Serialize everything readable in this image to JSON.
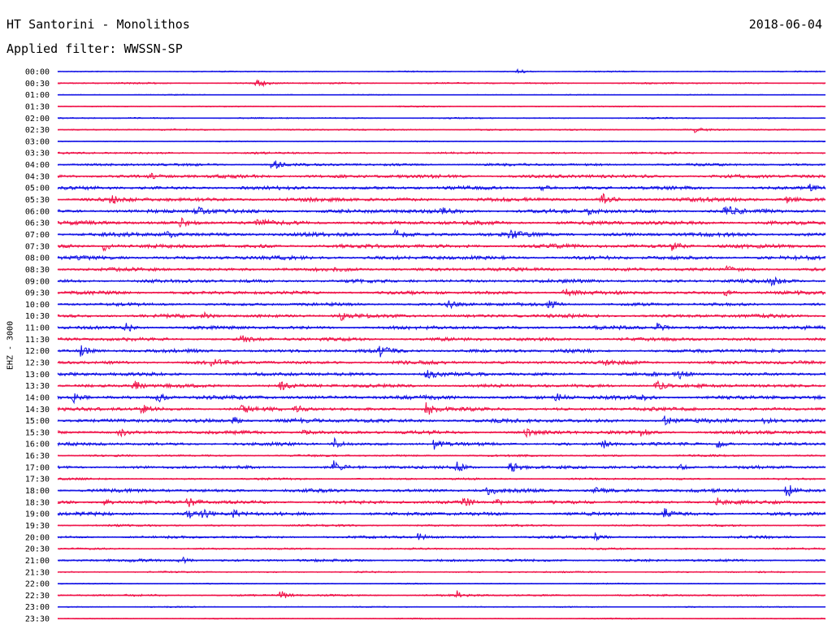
{
  "header": {
    "station": "HT Santorini - Monolithos",
    "date": "2018-06-04",
    "filter": "Applied filter: WWSSN-SP"
  },
  "chart_data": {
    "type": "line",
    "title": "HT Santorini - Monolithos",
    "ylabel": "EHZ - 3000",
    "xlim_minutes": [
      0,
      30
    ],
    "colors": [
      "#1414e6",
      "#f0144a"
    ],
    "rows": [
      {
        "label": "00:00",
        "noise": 0.6,
        "events": [
          [
            0.6,
            3
          ]
        ]
      },
      {
        "label": "00:30",
        "noise": 0.8,
        "events": [
          [
            0.26,
            7
          ]
        ]
      },
      {
        "label": "01:00",
        "noise": 0.5,
        "events": []
      },
      {
        "label": "01:30",
        "noise": 0.6,
        "events": []
      },
      {
        "label": "02:00",
        "noise": 0.7,
        "events": []
      },
      {
        "label": "02:30",
        "noise": 0.8,
        "events": [
          [
            0.83,
            3
          ]
        ]
      },
      {
        "label": "03:00",
        "noise": 0.6,
        "events": []
      },
      {
        "label": "03:30",
        "noise": 1.0,
        "events": []
      },
      {
        "label": "04:00",
        "noise": 1.3,
        "events": [
          [
            0.28,
            7
          ]
        ]
      },
      {
        "label": "04:30",
        "noise": 1.8,
        "events": [
          [
            0.12,
            5
          ]
        ]
      },
      {
        "label": "05:00",
        "noise": 1.8,
        "events": [
          [
            0.63,
            4
          ],
          [
            0.98,
            4
          ]
        ]
      },
      {
        "label": "05:30",
        "noise": 2.0,
        "events": [
          [
            0.07,
            6
          ],
          [
            0.71,
            6
          ],
          [
            0.95,
            4
          ]
        ]
      },
      {
        "label": "06:00",
        "noise": 2.0,
        "events": [
          [
            0.18,
            6
          ],
          [
            0.5,
            4
          ],
          [
            0.69,
            4
          ],
          [
            0.87,
            8
          ]
        ]
      },
      {
        "label": "06:30",
        "noise": 2.0,
        "events": [
          [
            0.16,
            6
          ],
          [
            0.26,
            5
          ]
        ]
      },
      {
        "label": "07:00",
        "noise": 2.0,
        "events": [
          [
            0.14,
            6
          ],
          [
            0.44,
            6
          ],
          [
            0.59,
            6
          ]
        ]
      },
      {
        "label": "07:30",
        "noise": 2.0,
        "events": [
          [
            0.06,
            6
          ],
          [
            0.8,
            7
          ]
        ]
      },
      {
        "label": "08:00",
        "noise": 2.0,
        "events": []
      },
      {
        "label": "08:30",
        "noise": 1.8,
        "events": [
          [
            0.87,
            3
          ]
        ]
      },
      {
        "label": "09:00",
        "noise": 1.8,
        "events": [
          [
            0.93,
            5
          ]
        ]
      },
      {
        "label": "09:30",
        "noise": 1.8,
        "events": [
          [
            0.66,
            7
          ],
          [
            0.87,
            4
          ]
        ]
      },
      {
        "label": "10:00",
        "noise": 1.6,
        "events": [
          [
            0.51,
            5
          ],
          [
            0.64,
            5
          ]
        ]
      },
      {
        "label": "10:30",
        "noise": 1.8,
        "events": [
          [
            0.19,
            4
          ],
          [
            0.37,
            7
          ]
        ]
      },
      {
        "label": "11:00",
        "noise": 1.8,
        "events": [
          [
            0.09,
            5
          ],
          [
            0.78,
            6
          ]
        ]
      },
      {
        "label": "11:30",
        "noise": 1.8,
        "events": [
          [
            0.24,
            4
          ]
        ]
      },
      {
        "label": "12:00",
        "noise": 1.8,
        "events": [
          [
            0.03,
            6
          ],
          [
            0.42,
            6
          ]
        ]
      },
      {
        "label": "12:30",
        "noise": 1.8,
        "events": [
          [
            0.2,
            7
          ],
          [
            0.71,
            4
          ]
        ]
      },
      {
        "label": "13:00",
        "noise": 1.8,
        "events": [
          [
            0.48,
            8
          ],
          [
            0.81,
            5
          ]
        ]
      },
      {
        "label": "13:30",
        "noise": 1.8,
        "events": [
          [
            0.1,
            6
          ],
          [
            0.29,
            5
          ],
          [
            0.78,
            7
          ]
        ]
      },
      {
        "label": "14:00",
        "noise": 2.0,
        "events": [
          [
            0.02,
            6
          ],
          [
            0.13,
            6
          ],
          [
            0.65,
            4
          ],
          [
            0.76,
            4
          ]
        ]
      },
      {
        "label": "14:30",
        "noise": 1.8,
        "events": [
          [
            0.11,
            6
          ],
          [
            0.24,
            6
          ],
          [
            0.31,
            5
          ],
          [
            0.48,
            10
          ]
        ]
      },
      {
        "label": "15:00",
        "noise": 2.0,
        "events": [
          [
            0.23,
            5
          ],
          [
            0.31,
            4
          ],
          [
            0.79,
            6
          ],
          [
            0.92,
            3
          ]
        ]
      },
      {
        "label": "15:30",
        "noise": 1.8,
        "events": [
          [
            0.08,
            6
          ],
          [
            0.32,
            5
          ],
          [
            0.61,
            4
          ],
          [
            0.76,
            4
          ]
        ]
      },
      {
        "label": "16:00",
        "noise": 1.6,
        "events": [
          [
            0.36,
            7
          ],
          [
            0.49,
            6
          ],
          [
            0.71,
            6
          ],
          [
            0.86,
            5
          ]
        ]
      },
      {
        "label": "16:30",
        "noise": 1.0,
        "events": []
      },
      {
        "label": "17:00",
        "noise": 1.6,
        "events": [
          [
            0.36,
            8
          ],
          [
            0.52,
            6
          ],
          [
            0.59,
            8
          ],
          [
            0.81,
            5
          ]
        ]
      },
      {
        "label": "17:30",
        "noise": 1.0,
        "events": []
      },
      {
        "label": "18:00",
        "noise": 1.8,
        "events": [
          [
            0.56,
            6
          ],
          [
            0.7,
            6
          ],
          [
            0.95,
            10
          ]
        ]
      },
      {
        "label": "18:30",
        "noise": 1.8,
        "events": [
          [
            0.06,
            5
          ],
          [
            0.17,
            7
          ],
          [
            0.53,
            6
          ],
          [
            0.57,
            6
          ],
          [
            0.86,
            5
          ]
        ]
      },
      {
        "label": "19:00",
        "noise": 1.8,
        "events": [
          [
            0.17,
            5
          ],
          [
            0.19,
            6
          ],
          [
            0.23,
            5
          ],
          [
            0.79,
            7
          ]
        ]
      },
      {
        "label": "19:30",
        "noise": 1.0,
        "events": []
      },
      {
        "label": "20:00",
        "noise": 1.3,
        "events": [
          [
            0.47,
            5
          ],
          [
            0.7,
            4
          ]
        ]
      },
      {
        "label": "20:30",
        "noise": 0.9,
        "events": []
      },
      {
        "label": "21:00",
        "noise": 1.3,
        "events": [
          [
            0.16,
            5
          ]
        ]
      },
      {
        "label": "21:30",
        "noise": 0.8,
        "events": []
      },
      {
        "label": "22:00",
        "noise": 0.6,
        "events": []
      },
      {
        "label": "22:30",
        "noise": 1.0,
        "events": [
          [
            0.29,
            6
          ],
          [
            0.52,
            5
          ]
        ]
      },
      {
        "label": "23:00",
        "noise": 0.6,
        "events": []
      },
      {
        "label": "23:30",
        "noise": 0.6,
        "events": []
      }
    ]
  }
}
